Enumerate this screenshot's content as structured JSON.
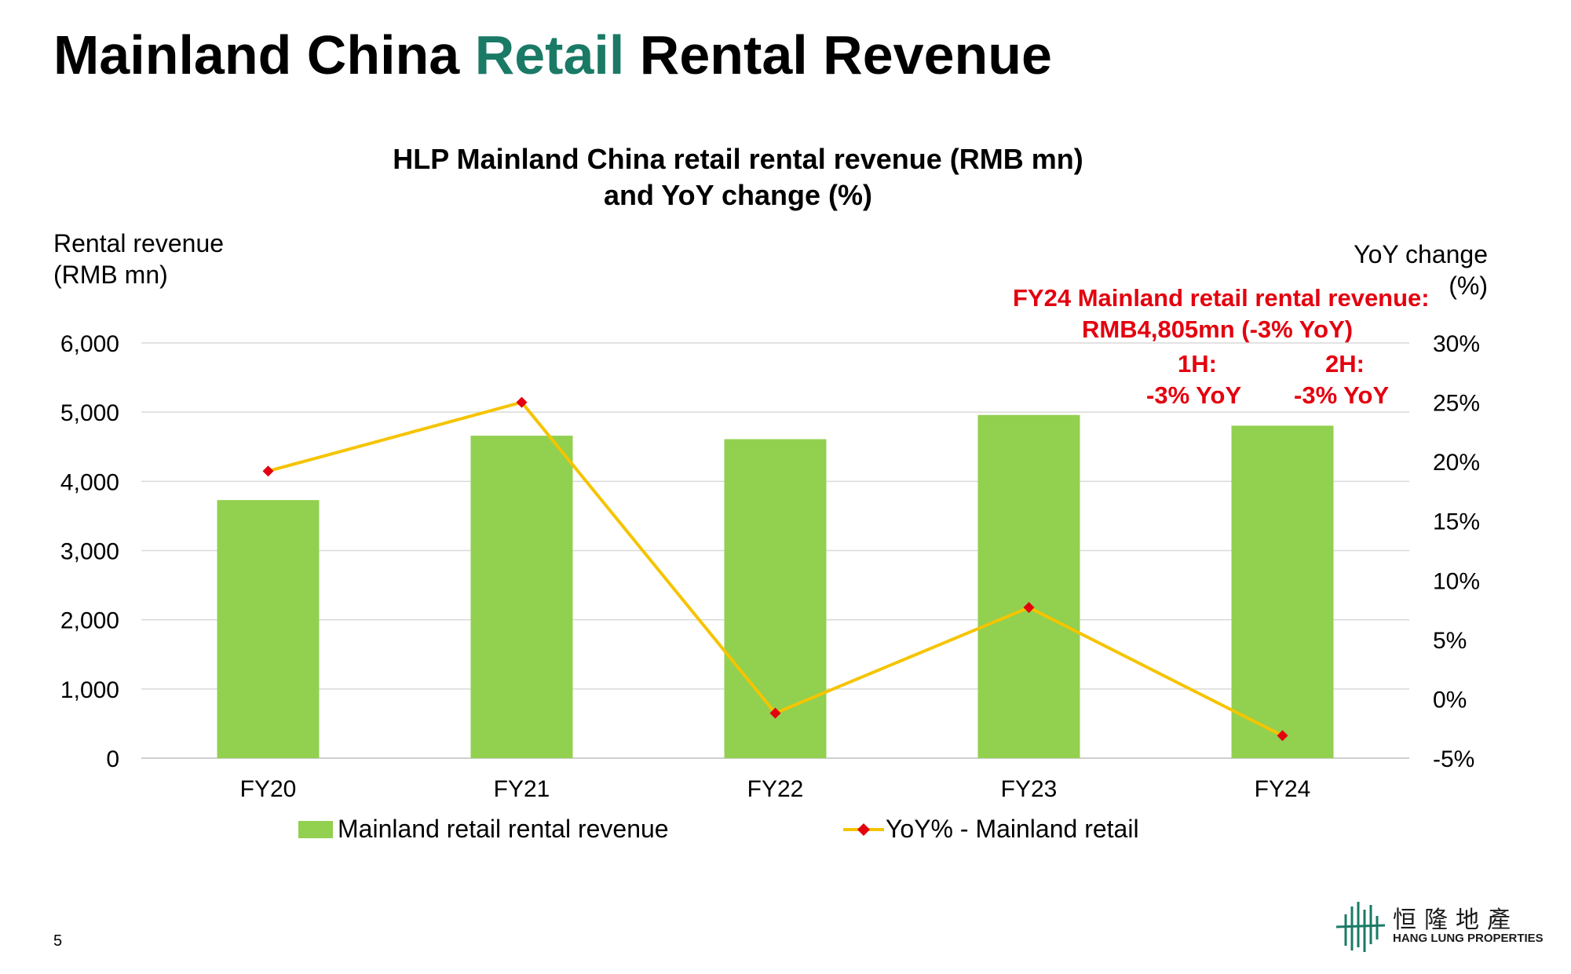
{
  "slide": {
    "title_part1": "Mainland China ",
    "title_accent": "Retail",
    "title_part2": " Rental Revenue",
    "page_number": "5",
    "accent_color": "#1a7a66"
  },
  "notes": {
    "line1": "FY24 Mainland retail rental revenue:",
    "line2": "RMB4,805mn  (-3% YoY)",
    "h1_label": "1H:",
    "h1_value": "-3% YoY",
    "h2_label": "2H:",
    "h2_value": "-3% YoY",
    "color": "#e3000f"
  },
  "logo": {
    "chinese": "恒隆地產",
    "english": "HANG LUNG PROPERTIES",
    "icon": "hang-lung-logo-icon"
  },
  "chart_data": {
    "type": "bar",
    "title_line1": "HLP Mainland China retail rental revenue (RMB mn)",
    "title_line2": "and YoY change (%)",
    "ylabel_line1": "Rental revenue",
    "ylabel_line2": "(RMB mn)",
    "y2label_line1": "YoY change",
    "y2label_line2": "(%)",
    "categories": [
      "FY20",
      "FY21",
      "FY22",
      "FY23",
      "FY24"
    ],
    "ylim": [
      0,
      6000
    ],
    "yticks": [
      0,
      1000,
      2000,
      3000,
      4000,
      5000,
      6000
    ],
    "ytick_labels": [
      "0",
      "1,000",
      "2,000",
      "3,000",
      "4,000",
      "5,000",
      "6,000"
    ],
    "y2lim": [
      -5,
      30
    ],
    "y2ticks": [
      -5,
      0,
      5,
      10,
      15,
      20,
      25,
      30
    ],
    "y2tick_labels": [
      "-5%",
      "0%",
      "5%",
      "10%",
      "15%",
      "20%",
      "25%",
      "30%"
    ],
    "grid": true,
    "legend_position": "bottom",
    "series": [
      {
        "name": "Mainland retail rental revenue",
        "type": "bar",
        "axis": "left",
        "color": "#92d050",
        "values": [
          3730,
          4660,
          4610,
          4960,
          4805
        ]
      },
      {
        "name": "YoY% - Mainland retail",
        "type": "line",
        "axis": "right",
        "color": "#f5c400",
        "marker_color": "#e3000f",
        "marker": "diamond",
        "values": [
          19.2,
          25.0,
          -1.2,
          7.7,
          -3.1
        ]
      }
    ]
  }
}
